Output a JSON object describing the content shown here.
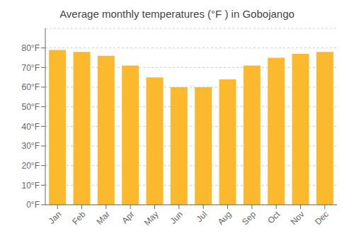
{
  "chart_data": {
    "type": "bar",
    "title": "Average monthly temperatures (°F ) in Gobojango",
    "categories": [
      "Jan",
      "Feb",
      "Mar",
      "Apr",
      "May",
      "Jun",
      "Jul",
      "Aug",
      "Sep",
      "Oct",
      "Nov",
      "Dec"
    ],
    "values": [
      79,
      78,
      76,
      71,
      65,
      60,
      60,
      64,
      71,
      75,
      77,
      78
    ],
    "color": "#FDB92E",
    "ylim": [
      0,
      90
    ],
    "yticks": [
      {
        "value": 0,
        "label": "0°F"
      },
      {
        "value": 10,
        "label": "10°F"
      },
      {
        "value": 20,
        "label": "20°F"
      },
      {
        "value": 30,
        "label": "30°F"
      },
      {
        "value": 40,
        "label": "40°F"
      },
      {
        "value": 50,
        "label": "50°F"
      },
      {
        "value": 60,
        "label": "60°F"
      },
      {
        "value": 70,
        "label": "70°F"
      },
      {
        "value": 80,
        "label": "80°F"
      }
    ],
    "grid": true
  }
}
